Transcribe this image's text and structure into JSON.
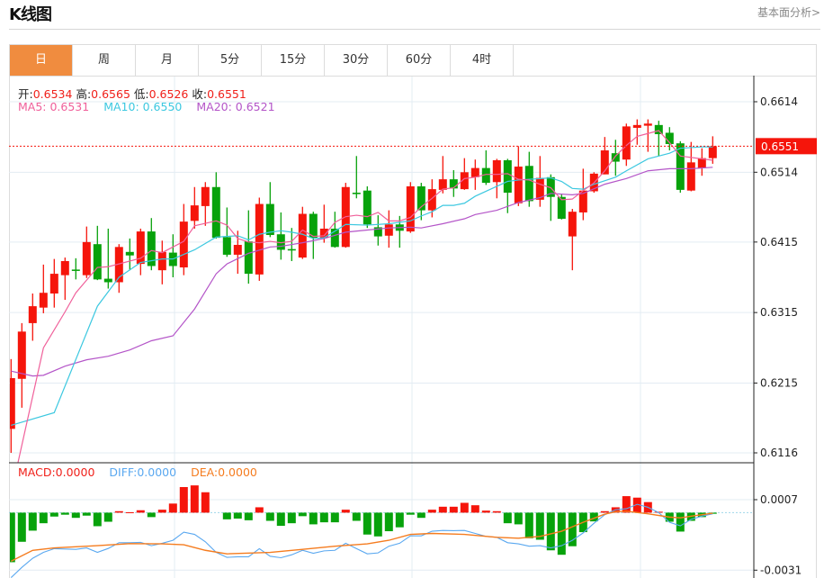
{
  "header": {
    "title": "K线图",
    "link": "基本面分析>"
  },
  "tabs": [
    {
      "label": "日",
      "active": true
    },
    {
      "label": "周"
    },
    {
      "label": "月"
    },
    {
      "label": "5分"
    },
    {
      "label": "15分"
    },
    {
      "label": "30分"
    },
    {
      "label": "60分"
    },
    {
      "label": "4时"
    }
  ],
  "ohlc": {
    "open_label": "开:",
    "open": "0.6534",
    "high_label": "高:",
    "high": "0.6565",
    "low_label": "低:",
    "low": "0.6526",
    "close_label": "收:",
    "close": "0.6551"
  },
  "ma": {
    "ma5": "MA5: 0.6531",
    "ma10": "MA10: 0.6550",
    "ma20": "MA20: 0.6521"
  },
  "macd_info": {
    "macd": "MACD:0.0000",
    "diff": "DIFF:0.0000",
    "dea": "DEA:0.0000"
  },
  "colors": {
    "up": "#f5150b",
    "down": "#07a20b",
    "ma5": "#f0609a",
    "ma10": "#3cc8e0",
    "ma20": "#b455c8",
    "diff": "#5aa8f0",
    "dea": "#f57c1f",
    "accent": "#f08c3f"
  },
  "chart_data": {
    "type": "candlestick",
    "price_axis": {
      "ticks": [
        "0.6614",
        "0.6514",
        "0.6415",
        "0.6315",
        "0.6215",
        "0.6116"
      ],
      "range": [
        0.6116,
        0.6614
      ]
    },
    "last_price": "0.6551",
    "candles": [
      [
        0.615,
        0.6249,
        0.6116,
        0.6222
      ],
      [
        0.6221,
        0.63,
        0.618,
        0.6288
      ],
      [
        0.63,
        0.6342,
        0.6275,
        0.6324
      ],
      [
        0.6322,
        0.6383,
        0.6314,
        0.6343
      ],
      [
        0.6342,
        0.6391,
        0.6322,
        0.637
      ],
      [
        0.6368,
        0.6393,
        0.6333,
        0.6388
      ],
      [
        0.6376,
        0.6392,
        0.6362,
        0.6374
      ],
      [
        0.6368,
        0.6437,
        0.6364,
        0.6415
      ],
      [
        0.6412,
        0.6438,
        0.6361,
        0.6362
      ],
      [
        0.6363,
        0.6434,
        0.6349,
        0.6358
      ],
      [
        0.6358,
        0.6412,
        0.6343,
        0.6408
      ],
      [
        0.6401,
        0.642,
        0.6375,
        0.6396
      ],
      [
        0.6384,
        0.6434,
        0.6368,
        0.643
      ],
      [
        0.643,
        0.6449,
        0.6375,
        0.6381
      ],
      [
        0.6375,
        0.6417,
        0.6355,
        0.6401
      ],
      [
        0.64,
        0.6426,
        0.6365,
        0.6381
      ],
      [
        0.6379,
        0.6469,
        0.6368,
        0.6444
      ],
      [
        0.6445,
        0.6493,
        0.6434,
        0.6467
      ],
      [
        0.6466,
        0.65,
        0.6438,
        0.6493
      ],
      [
        0.6493,
        0.6514,
        0.642,
        0.6421
      ],
      [
        0.6422,
        0.6464,
        0.6394,
        0.6397
      ],
      [
        0.6397,
        0.6431,
        0.637,
        0.6411
      ],
      [
        0.6416,
        0.646,
        0.6356,
        0.637
      ],
      [
        0.6369,
        0.6478,
        0.636,
        0.6469
      ],
      [
        0.6469,
        0.65,
        0.6422,
        0.6425
      ],
      [
        0.6426,
        0.6457,
        0.639,
        0.6404
      ],
      [
        0.6405,
        0.6435,
        0.6388,
        0.6403
      ],
      [
        0.6393,
        0.6465,
        0.6391,
        0.6455
      ],
      [
        0.6455,
        0.6458,
        0.6391,
        0.6421
      ],
      [
        0.6421,
        0.6468,
        0.6414,
        0.6434
      ],
      [
        0.6434,
        0.6458,
        0.6407,
        0.6408
      ],
      [
        0.6408,
        0.6499,
        0.6407,
        0.6493
      ],
      [
        0.6485,
        0.6537,
        0.6477,
        0.6483
      ],
      [
        0.6488,
        0.6494,
        0.6435,
        0.644
      ],
      [
        0.6436,
        0.6453,
        0.641,
        0.6423
      ],
      [
        0.6424,
        0.646,
        0.6407,
        0.644
      ],
      [
        0.644,
        0.6452,
        0.6407,
        0.6431
      ],
      [
        0.643,
        0.65,
        0.6428,
        0.6494
      ],
      [
        0.6494,
        0.6499,
        0.6446,
        0.646
      ],
      [
        0.646,
        0.6504,
        0.645,
        0.649
      ],
      [
        0.6489,
        0.6537,
        0.6484,
        0.6504
      ],
      [
        0.6504,
        0.6517,
        0.6479,
        0.6491
      ],
      [
        0.649,
        0.6534,
        0.6489,
        0.6514
      ],
      [
        0.6507,
        0.6532,
        0.6489,
        0.652
      ],
      [
        0.652,
        0.6545,
        0.6496,
        0.6499
      ],
      [
        0.65,
        0.6533,
        0.6477,
        0.6531
      ],
      [
        0.6531,
        0.6533,
        0.6456,
        0.6485
      ],
      [
        0.647,
        0.6551,
        0.6466,
        0.6522
      ],
      [
        0.6523,
        0.6543,
        0.6465,
        0.6473
      ],
      [
        0.6475,
        0.6537,
        0.6465,
        0.6506
      ],
      [
        0.6507,
        0.6511,
        0.6445,
        0.6479
      ],
      [
        0.6479,
        0.6483,
        0.6447,
        0.6448
      ],
      [
        0.6423,
        0.6462,
        0.6375,
        0.6458
      ],
      [
        0.6457,
        0.6519,
        0.6446,
        0.6488
      ],
      [
        0.6487,
        0.6514,
        0.6485,
        0.6512
      ],
      [
        0.6511,
        0.6564,
        0.6511,
        0.6545
      ],
      [
        0.6541,
        0.656,
        0.6509,
        0.6529
      ],
      [
        0.6532,
        0.6583,
        0.6523,
        0.6579
      ],
      [
        0.6577,
        0.6589,
        0.6553,
        0.6581
      ],
      [
        0.658,
        0.6589,
        0.6543,
        0.6583
      ],
      [
        0.6581,
        0.6587,
        0.6537,
        0.6568
      ],
      [
        0.657,
        0.6578,
        0.6545,
        0.6554
      ],
      [
        0.6555,
        0.6558,
        0.6485,
        0.6489
      ],
      [
        0.6488,
        0.6557,
        0.6487,
        0.6528
      ],
      [
        0.652,
        0.6548,
        0.6509,
        0.6534
      ],
      [
        0.6534,
        0.6565,
        0.6526,
        0.6551
      ]
    ],
    "ma5": [
      [
        0,
        0.6058
      ],
      [
        1,
        0.6127
      ],
      [
        2,
        0.6196
      ],
      [
        3,
        0.6265
      ],
      [
        5,
        0.6316
      ],
      [
        6,
        0.6343
      ],
      [
        8,
        0.6379
      ],
      [
        9,
        0.638
      ],
      [
        10,
        0.6384
      ],
      [
        12,
        0.6392
      ],
      [
        13,
        0.6403
      ],
      [
        14,
        0.64
      ],
      [
        16,
        0.6416
      ],
      [
        17,
        0.6438
      ],
      [
        19,
        0.6445
      ],
      [
        20,
        0.6439
      ],
      [
        21,
        0.642
      ],
      [
        22,
        0.6415
      ],
      [
        23,
        0.6414
      ],
      [
        24,
        0.6416
      ],
      [
        25,
        0.6414
      ],
      [
        26,
        0.6416
      ],
      [
        27,
        0.6432
      ],
      [
        28,
        0.6423
      ],
      [
        29,
        0.6424
      ],
      [
        30,
        0.6443
      ],
      [
        31,
        0.6451
      ],
      [
        32,
        0.6453
      ],
      [
        33,
        0.6451
      ],
      [
        34,
        0.6457
      ],
      [
        35,
        0.6445
      ],
      [
        36,
        0.6445
      ],
      [
        37,
        0.645
      ],
      [
        38,
        0.6465
      ],
      [
        39,
        0.6477
      ],
      [
        40,
        0.649
      ],
      [
        41,
        0.6492
      ],
      [
        42,
        0.6505
      ],
      [
        43,
        0.6507
      ],
      [
        44,
        0.6511
      ],
      [
        45,
        0.6511
      ],
      [
        46,
        0.6512
      ],
      [
        47,
        0.6504
      ],
      [
        48,
        0.6503
      ],
      [
        49,
        0.6497
      ],
      [
        50,
        0.6492
      ],
      [
        51,
        0.6475
      ],
      [
        52,
        0.6476
      ],
      [
        53,
        0.6488
      ],
      [
        54,
        0.6499
      ],
      [
        55,
        0.6516
      ],
      [
        56,
        0.6537
      ],
      [
        57,
        0.6552
      ],
      [
        58,
        0.6565
      ],
      [
        59,
        0.6569
      ],
      [
        60,
        0.6573
      ],
      [
        61,
        0.6556
      ],
      [
        62,
        0.6537
      ],
      [
        63,
        0.6535
      ],
      [
        64,
        0.6533
      ],
      [
        65,
        0.6531
      ]
    ],
    "ma10": [
      [
        0,
        0.6155
      ],
      [
        4,
        0.6173
      ],
      [
        8,
        0.6324
      ],
      [
        10,
        0.6365
      ],
      [
        12,
        0.6386
      ],
      [
        14,
        0.6391
      ],
      [
        15,
        0.6391
      ],
      [
        17,
        0.6404
      ],
      [
        19,
        0.6422
      ],
      [
        21,
        0.6424
      ],
      [
        22,
        0.6418
      ],
      [
        23,
        0.6426
      ],
      [
        24,
        0.6429
      ],
      [
        25,
        0.6431
      ],
      [
        26,
        0.6429
      ],
      [
        27,
        0.6426
      ],
      [
        28,
        0.642
      ],
      [
        29,
        0.6421
      ],
      [
        31,
        0.644
      ],
      [
        33,
        0.6439
      ],
      [
        35,
        0.6441
      ],
      [
        37,
        0.6445
      ],
      [
        38,
        0.6452
      ],
      [
        39,
        0.6458
      ],
      [
        40,
        0.6467
      ],
      [
        41,
        0.6467
      ],
      [
        42,
        0.647
      ],
      [
        43,
        0.648
      ],
      [
        45,
        0.6494
      ],
      [
        46,
        0.6501
      ],
      [
        47,
        0.6503
      ],
      [
        49,
        0.6505
      ],
      [
        50,
        0.6506
      ],
      [
        51,
        0.6501
      ],
      [
        52,
        0.6491
      ],
      [
        53,
        0.649
      ],
      [
        54,
        0.6497
      ],
      [
        56,
        0.6507
      ],
      [
        57,
        0.6516
      ],
      [
        59,
        0.6533
      ],
      [
        61,
        0.6541
      ],
      [
        62,
        0.6548
      ],
      [
        64,
        0.655
      ],
      [
        65,
        0.655
      ]
    ],
    "ma20": [
      [
        0,
        0.6232
      ],
      [
        2,
        0.6225
      ],
      [
        3,
        0.6226
      ],
      [
        5,
        0.6239
      ],
      [
        7,
        0.6248
      ],
      [
        9,
        0.6253
      ],
      [
        11,
        0.6262
      ],
      [
        13,
        0.6275
      ],
      [
        15,
        0.6282
      ],
      [
        17,
        0.632
      ],
      [
        19,
        0.637
      ],
      [
        20,
        0.6384
      ],
      [
        22,
        0.6399
      ],
      [
        24,
        0.6408
      ],
      [
        25,
        0.6409
      ],
      [
        27,
        0.6414
      ],
      [
        29,
        0.642
      ],
      [
        31,
        0.6429
      ],
      [
        33,
        0.6432
      ],
      [
        35,
        0.6435
      ],
      [
        37,
        0.6436
      ],
      [
        38,
        0.6435
      ],
      [
        40,
        0.6441
      ],
      [
        42,
        0.6448
      ],
      [
        43,
        0.6454
      ],
      [
        45,
        0.646
      ],
      [
        47,
        0.6471
      ],
      [
        49,
        0.6478
      ],
      [
        50,
        0.6484
      ],
      [
        52,
        0.6482
      ],
      [
        53,
        0.6484
      ],
      [
        55,
        0.6497
      ],
      [
        57,
        0.6505
      ],
      [
        59,
        0.6516
      ],
      [
        61,
        0.6519
      ],
      [
        63,
        0.6519
      ],
      [
        65,
        0.6521
      ]
    ],
    "macd_axis": {
      "ticks": [
        "0.0007",
        "-0.0031"
      ],
      "range": [
        -0.0031,
        0.0007
      ]
    },
    "macd_hist": [
      -0.00267,
      -0.00157,
      -0.00097,
      -0.00057,
      -0.00021,
      -0.00011,
      -0.00028,
      -0.00016,
      -0.00073,
      -0.00049,
      8e-05,
      2e-05,
      0.00013,
      -0.00024,
      0.00016,
      0.00049,
      0.00138,
      0.00147,
      0.0011,
      0,
      -0.00036,
      -0.00032,
      -0.00041,
      0.00029,
      -0.00044,
      -0.00071,
      -0.00057,
      -0.00019,
      -0.00063,
      -0.00052,
      -0.00052,
      0.00016,
      -0.00044,
      -0.00118,
      -0.00128,
      -0.001,
      -0.00079,
      -0.00011,
      -0.00028,
      0.00016,
      0.00032,
      0.00032,
      0.00053,
      0.0004,
      0.00011,
      8e-05,
      -0.00057,
      -0.00063,
      -0.00138,
      -0.00146,
      -0.00203,
      -0.00227,
      -0.00181,
      -0.00105,
      -0.00047,
      8e-05,
      0.00029,
      0.00089,
      0.00081,
      0.00057,
      5e-05,
      -0.00049,
      -0.00102,
      -0.00044,
      -0.00024,
      -6e-05
    ],
    "dea": [
      [
        0,
        -0.00262
      ],
      [
        2,
        -0.00203
      ],
      [
        4,
        -0.0019
      ],
      [
        8,
        -0.00178
      ],
      [
        11,
        -0.00167
      ],
      [
        14,
        -0.00168
      ],
      [
        16,
        -0.00173
      ],
      [
        18,
        -0.00203
      ],
      [
        20,
        -0.00222
      ],
      [
        24,
        -0.00214
      ],
      [
        27,
        -0.00198
      ],
      [
        30,
        -0.00181
      ],
      [
        33,
        -0.00168
      ],
      [
        35,
        -0.00149
      ],
      [
        37,
        -0.00117
      ],
      [
        39,
        -0.00112
      ],
      [
        42,
        -0.00117
      ],
      [
        45,
        -0.00133
      ],
      [
        47,
        -0.00138
      ],
      [
        49,
        -0.00128
      ],
      [
        51,
        -0.001
      ],
      [
        53,
        -0.00052
      ],
      [
        55,
        -8e-05
      ],
      [
        56,
        5e-05
      ],
      [
        57,
        8e-05
      ],
      [
        59,
        -6e-05
      ],
      [
        61,
        -0.00024
      ],
      [
        62,
        -0.00028
      ],
      [
        63,
        -0.00019
      ],
      [
        65,
        -3e-05
      ]
    ],
    "diff": [
      [
        0,
        -0.0035
      ],
      [
        1,
        -0.00295
      ],
      [
        2,
        -0.00246
      ],
      [
        3,
        -0.00214
      ],
      [
        4,
        -0.00194
      ],
      [
        6,
        -0.00198
      ],
      [
        7,
        -0.0019
      ],
      [
        8,
        -0.00214
      ],
      [
        9,
        -0.00193
      ],
      [
        10,
        -0.00162
      ],
      [
        11,
        -0.00162
      ],
      [
        12,
        -0.0016
      ],
      [
        13,
        -0.00178
      ],
      [
        14,
        -0.00165
      ],
      [
        15,
        -0.00149
      ],
      [
        16,
        -0.00105
      ],
      [
        17,
        -0.00117
      ],
      [
        18,
        -0.00157
      ],
      [
        19,
        -0.00214
      ],
      [
        20,
        -0.00241
      ],
      [
        21,
        -0.00238
      ],
      [
        22,
        -0.00238
      ],
      [
        23,
        -0.00194
      ],
      [
        24,
        -0.00235
      ],
      [
        25,
        -0.00243
      ],
      [
        26,
        -0.00227
      ],
      [
        27,
        -0.00203
      ],
      [
        28,
        -0.00219
      ],
      [
        29,
        -0.00206
      ],
      [
        30,
        -0.00203
      ],
      [
        31,
        -0.00165
      ],
      [
        32,
        -0.00194
      ],
      [
        33,
        -0.00222
      ],
      [
        34,
        -0.00217
      ],
      [
        35,
        -0.00181
      ],
      [
        36,
        -0.00165
      ],
      [
        37,
        -0.00125
      ],
      [
        38,
        -0.00125
      ],
      [
        39,
        -0.001
      ],
      [
        40,
        -0.00096
      ],
      [
        41,
        -0.00097
      ],
      [
        42,
        -0.00096
      ],
      [
        43,
        -0.00112
      ],
      [
        44,
        -0.00128
      ],
      [
        45,
        -0.00133
      ],
      [
        46,
        -0.00162
      ],
      [
        47,
        -0.00168
      ],
      [
        48,
        -0.00181
      ],
      [
        49,
        -0.00178
      ],
      [
        50,
        -0.0019
      ],
      [
        51,
        -0.00178
      ],
      [
        52,
        -0.00149
      ],
      [
        53,
        -0.00109
      ],
      [
        54,
        -0.00057
      ],
      [
        55,
        -0.00011
      ],
      [
        56,
        0.00016
      ],
      [
        57,
        0.00021
      ],
      [
        58,
        0.00045
      ],
      [
        59,
        0.00029
      ],
      [
        60,
        0
      ],
      [
        61,
        -0.00052
      ],
      [
        62,
        -0.00071
      ],
      [
        63,
        -0.00036
      ],
      [
        64,
        -0.00019
      ],
      [
        65,
        -6e-05
      ]
    ]
  }
}
